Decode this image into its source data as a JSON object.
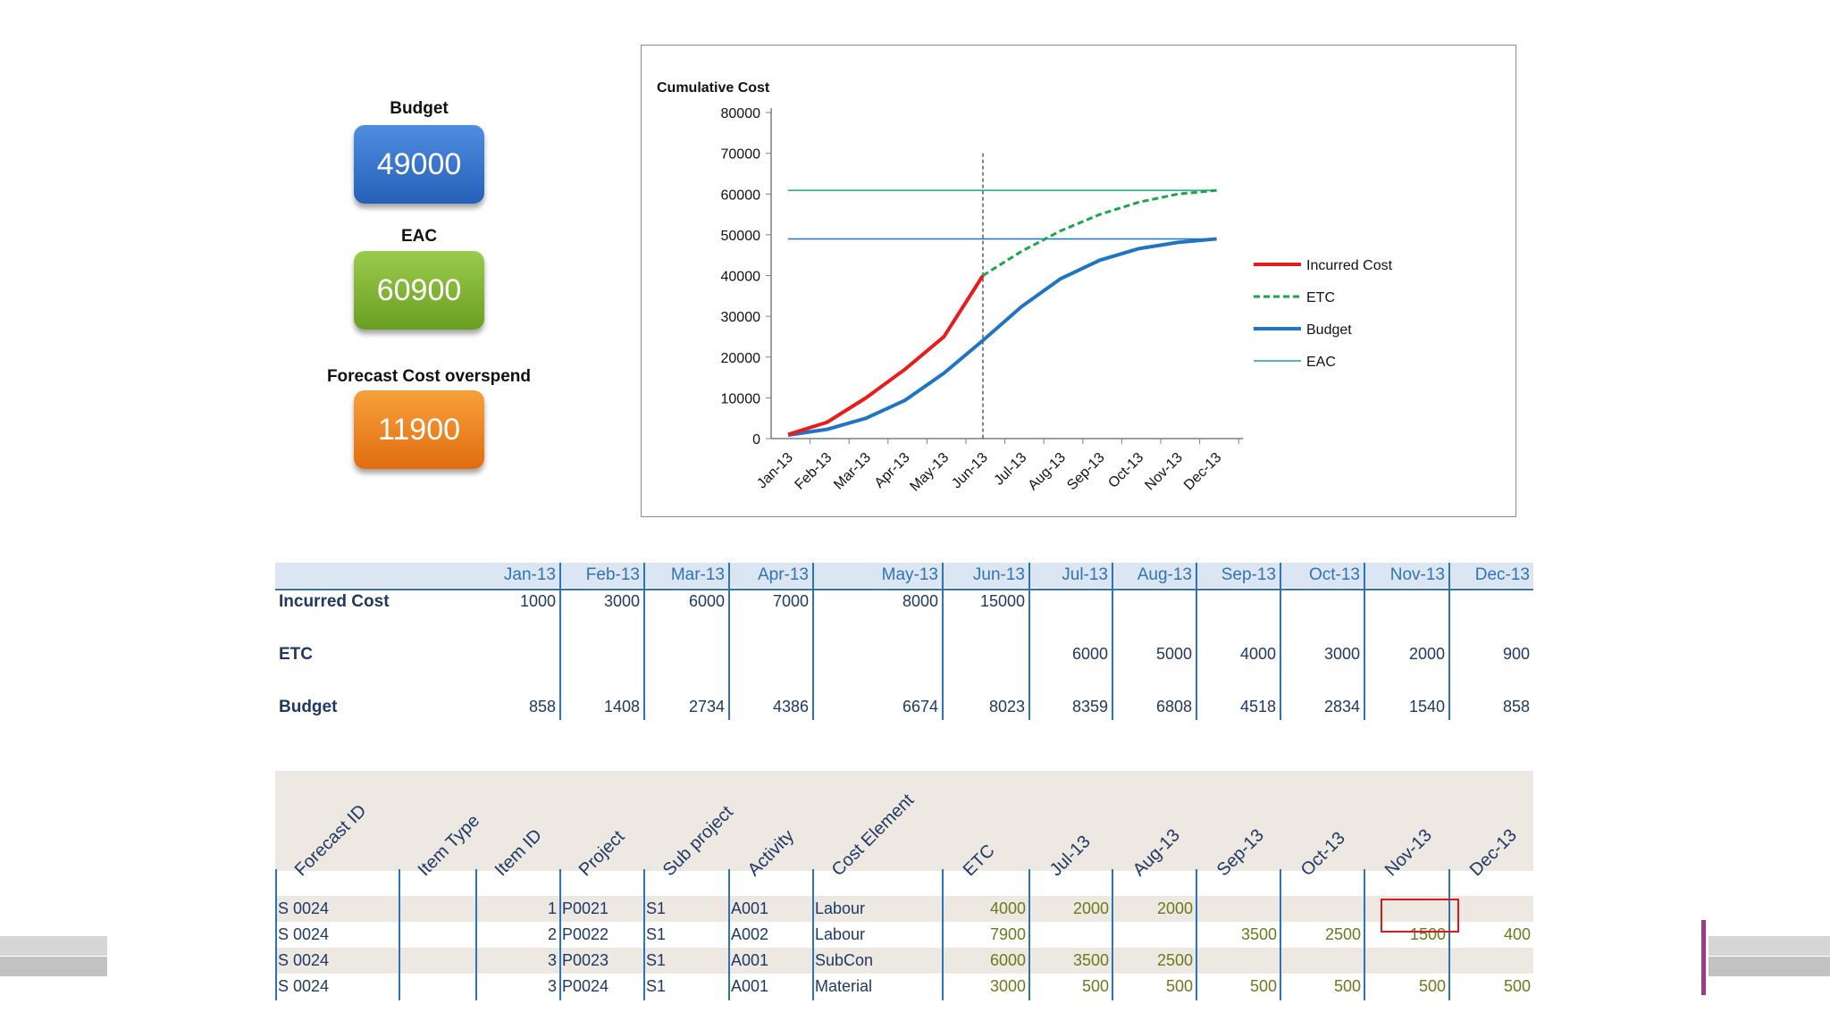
{
  "kpis": {
    "budget": {
      "label": "Budget",
      "value": "49000",
      "color": "#2e6fd0"
    },
    "eac": {
      "label": "EAC",
      "value": "60900",
      "color": "#7fb33a"
    },
    "overspend": {
      "label": "Forecast Cost overspend",
      "value": "11900",
      "color": "#ee8a22"
    }
  },
  "chart_data": {
    "type": "line",
    "title": "Cumulative Cost",
    "xlabel": "",
    "ylabel": "",
    "categories": [
      "Jan-13",
      "Feb-13",
      "Mar-13",
      "Apr-13",
      "May-13",
      "Jun-13",
      "Jul-13",
      "Aug-13",
      "Sep-13",
      "Oct-13",
      "Nov-13",
      "Dec-13"
    ],
    "ylim": [
      0,
      80000
    ],
    "yticks": [
      "0",
      "10000",
      "20000",
      "30000",
      "40000",
      "50000",
      "60000",
      "70000",
      "80000"
    ],
    "legend_position": "right",
    "grid": false,
    "series": [
      {
        "name": "Incurred Cost",
        "color": "#e81c1c",
        "style": "solid",
        "values": [
          1000,
          4000,
          10000,
          17000,
          25000,
          40000,
          null,
          null,
          null,
          null,
          null,
          null
        ]
      },
      {
        "name": "ETC",
        "color": "#1aa64b",
        "style": "dashed",
        "values": [
          null,
          null,
          null,
          null,
          null,
          40000,
          46000,
          51000,
          55000,
          58000,
          60000,
          60900
        ]
      },
      {
        "name": "Budget",
        "color": "#1f75c4",
        "style": "solid",
        "values": [
          858,
          2266,
          5000,
          9386,
          16060,
          24083,
          32442,
          39250,
          43768,
          46602,
          48142,
          49000
        ]
      },
      {
        "name": "EAC",
        "color": "#1aa68a",
        "style": "thin",
        "values": [
          60900,
          60900,
          60900,
          60900,
          60900,
          60900,
          60900,
          60900,
          60900,
          60900,
          60900,
          60900
        ]
      }
    ],
    "reference_lines": [
      {
        "axis": "y",
        "value": 49000,
        "color": "#1f75c4"
      },
      {
        "axis": "x",
        "category": "Jun-13",
        "style": "dashed",
        "color": "#333333"
      }
    ]
  },
  "summary_table": {
    "months": [
      "Jan-13",
      "Feb-13",
      "Mar-13",
      "Apr-13",
      "May-13",
      "Jun-13",
      "Jul-13",
      "Aug-13",
      "Sep-13",
      "Oct-13",
      "Nov-13",
      "Dec-13"
    ],
    "rows": [
      {
        "label": "Incurred Cost",
        "values": [
          "1000",
          "3000",
          "6000",
          "7000",
          "8000",
          "15000",
          "",
          "",
          "",
          "",
          "",
          ""
        ]
      },
      {
        "label": "ETC",
        "values": [
          "",
          "",
          "",
          "",
          "",
          "",
          "6000",
          "5000",
          "4000",
          "3000",
          "2000",
          "900"
        ]
      },
      {
        "label": "Budget",
        "values": [
          "858",
          "1408",
          "2734",
          "4386",
          "6674",
          "8023",
          "8359",
          "6808",
          "4518",
          "2834",
          "1540",
          "858"
        ]
      }
    ]
  },
  "detail_table": {
    "headers": [
      "Forecast ID",
      "Item Type",
      "Item ID",
      "Project",
      "Sub project",
      "Activity",
      "Cost Element",
      "ETC",
      "Jul-13",
      "Aug-13",
      "Sep-13",
      "Oct-13",
      "Nov-13",
      "Dec-13"
    ],
    "rows": [
      [
        "S 0024",
        "",
        "1",
        "P0021",
        "S1",
        "A001",
        "Labour",
        "4000",
        "2000",
        "2000",
        "",
        "",
        "",
        ""
      ],
      [
        "S 0024",
        "",
        "2",
        "P0022",
        "S1",
        "A002",
        "Labour",
        "7900",
        "",
        "",
        "3500",
        "2500",
        "1500",
        "400"
      ],
      [
        "S 0024",
        "",
        "3",
        "P0023",
        "S1",
        "A001",
        "SubCon",
        "6000",
        "3500",
        "2500",
        "",
        "",
        "",
        ""
      ],
      [
        "S 0024",
        "",
        "3",
        "P0024",
        "S1",
        "A001",
        "Material",
        "3000",
        "500",
        "500",
        "500",
        "500",
        "500",
        "500"
      ]
    ]
  }
}
